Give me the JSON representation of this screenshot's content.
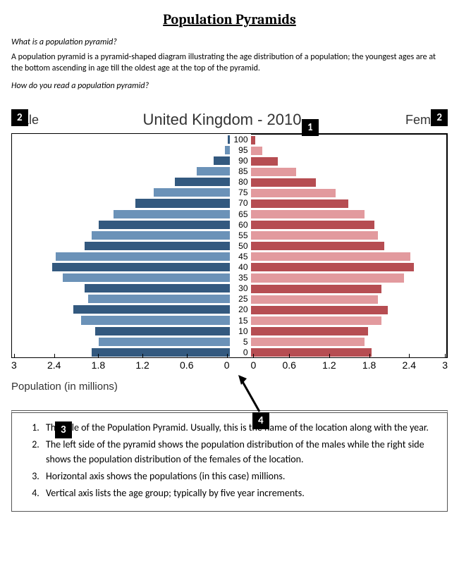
{
  "title": "Population Pyramids",
  "q1": "What is a population pyramid?",
  "para1": "A population pyramid is a pyramid-shaped diagram illustrating the age distribution of a population; the youngest ages are at the bottom ascending in age till the oldest age at the top of the pyramid.",
  "q2": "How do you read a population pyramid?",
  "chart": {
    "title": "United Kingdom - 2010",
    "male_label": "Male",
    "female_label": "Female",
    "axis_label": "Population (in millions)",
    "age_labels": [
      "100",
      "95",
      "90",
      "85",
      "80",
      "75",
      "70",
      "65",
      "60",
      "55",
      "50",
      "45",
      "40",
      "35",
      "30",
      "25",
      "20",
      "15",
      "10",
      "5",
      "0"
    ],
    "x_ticks_left": [
      "3",
      "2.4",
      "1.8",
      "1.2",
      "0.6",
      "0"
    ],
    "x_ticks_right": [
      "0",
      "0.6",
      "1.2",
      "1.8",
      "2.4",
      "3"
    ],
    "x_max": 3,
    "male_values": [
      0.02,
      0.06,
      0.22,
      0.45,
      0.75,
      1.05,
      1.3,
      1.6,
      1.8,
      1.9,
      2.0,
      2.4,
      2.45,
      2.3,
      2.0,
      1.95,
      2.15,
      2.05,
      1.85,
      1.8,
      1.9
    ],
    "female_values": [
      0.07,
      0.18,
      0.42,
      0.7,
      1.0,
      1.3,
      1.5,
      1.75,
      1.9,
      1.95,
      2.05,
      2.45,
      2.5,
      2.35,
      2.0,
      1.95,
      2.1,
      2.0,
      1.8,
      1.75,
      1.85
    ],
    "male_colors": [
      "#33597f",
      "#6b92b8",
      "#33597f",
      "#6b92b8",
      "#33597f",
      "#6b92b8",
      "#33597f",
      "#6b92b8",
      "#33597f",
      "#6b92b8",
      "#33597f",
      "#6b92b8",
      "#33597f",
      "#6b92b8",
      "#33597f",
      "#6b92b8",
      "#33597f",
      "#6b92b8",
      "#33597f",
      "#6b92b8",
      "#33597f"
    ],
    "female_colors": [
      "#b64d52",
      "#e29a9e",
      "#b64d52",
      "#e29a9e",
      "#b64d52",
      "#e29a9e",
      "#b64d52",
      "#e29a9e",
      "#b64d52",
      "#e29a9e",
      "#b64d52",
      "#e29a9e",
      "#b64d52",
      "#e29a9e",
      "#b64d52",
      "#e29a9e",
      "#b64d52",
      "#e29a9e",
      "#b64d52",
      "#e29a9e",
      "#b64d52"
    ]
  },
  "callouts": {
    "c1": "1",
    "c2": "2",
    "c3": "3",
    "c4": "4"
  },
  "legend": [
    "The title of the Population Pyramid. Usually, this is the name of the location along with the year.",
    "The left side of the pyramid shows the population distribution of the males while the right side shows the population distribution of the females of the location.",
    "Horizontal axis shows the populations (in this case) millions.",
    "Vertical axis lists the age group; typically by five year increments."
  ]
}
